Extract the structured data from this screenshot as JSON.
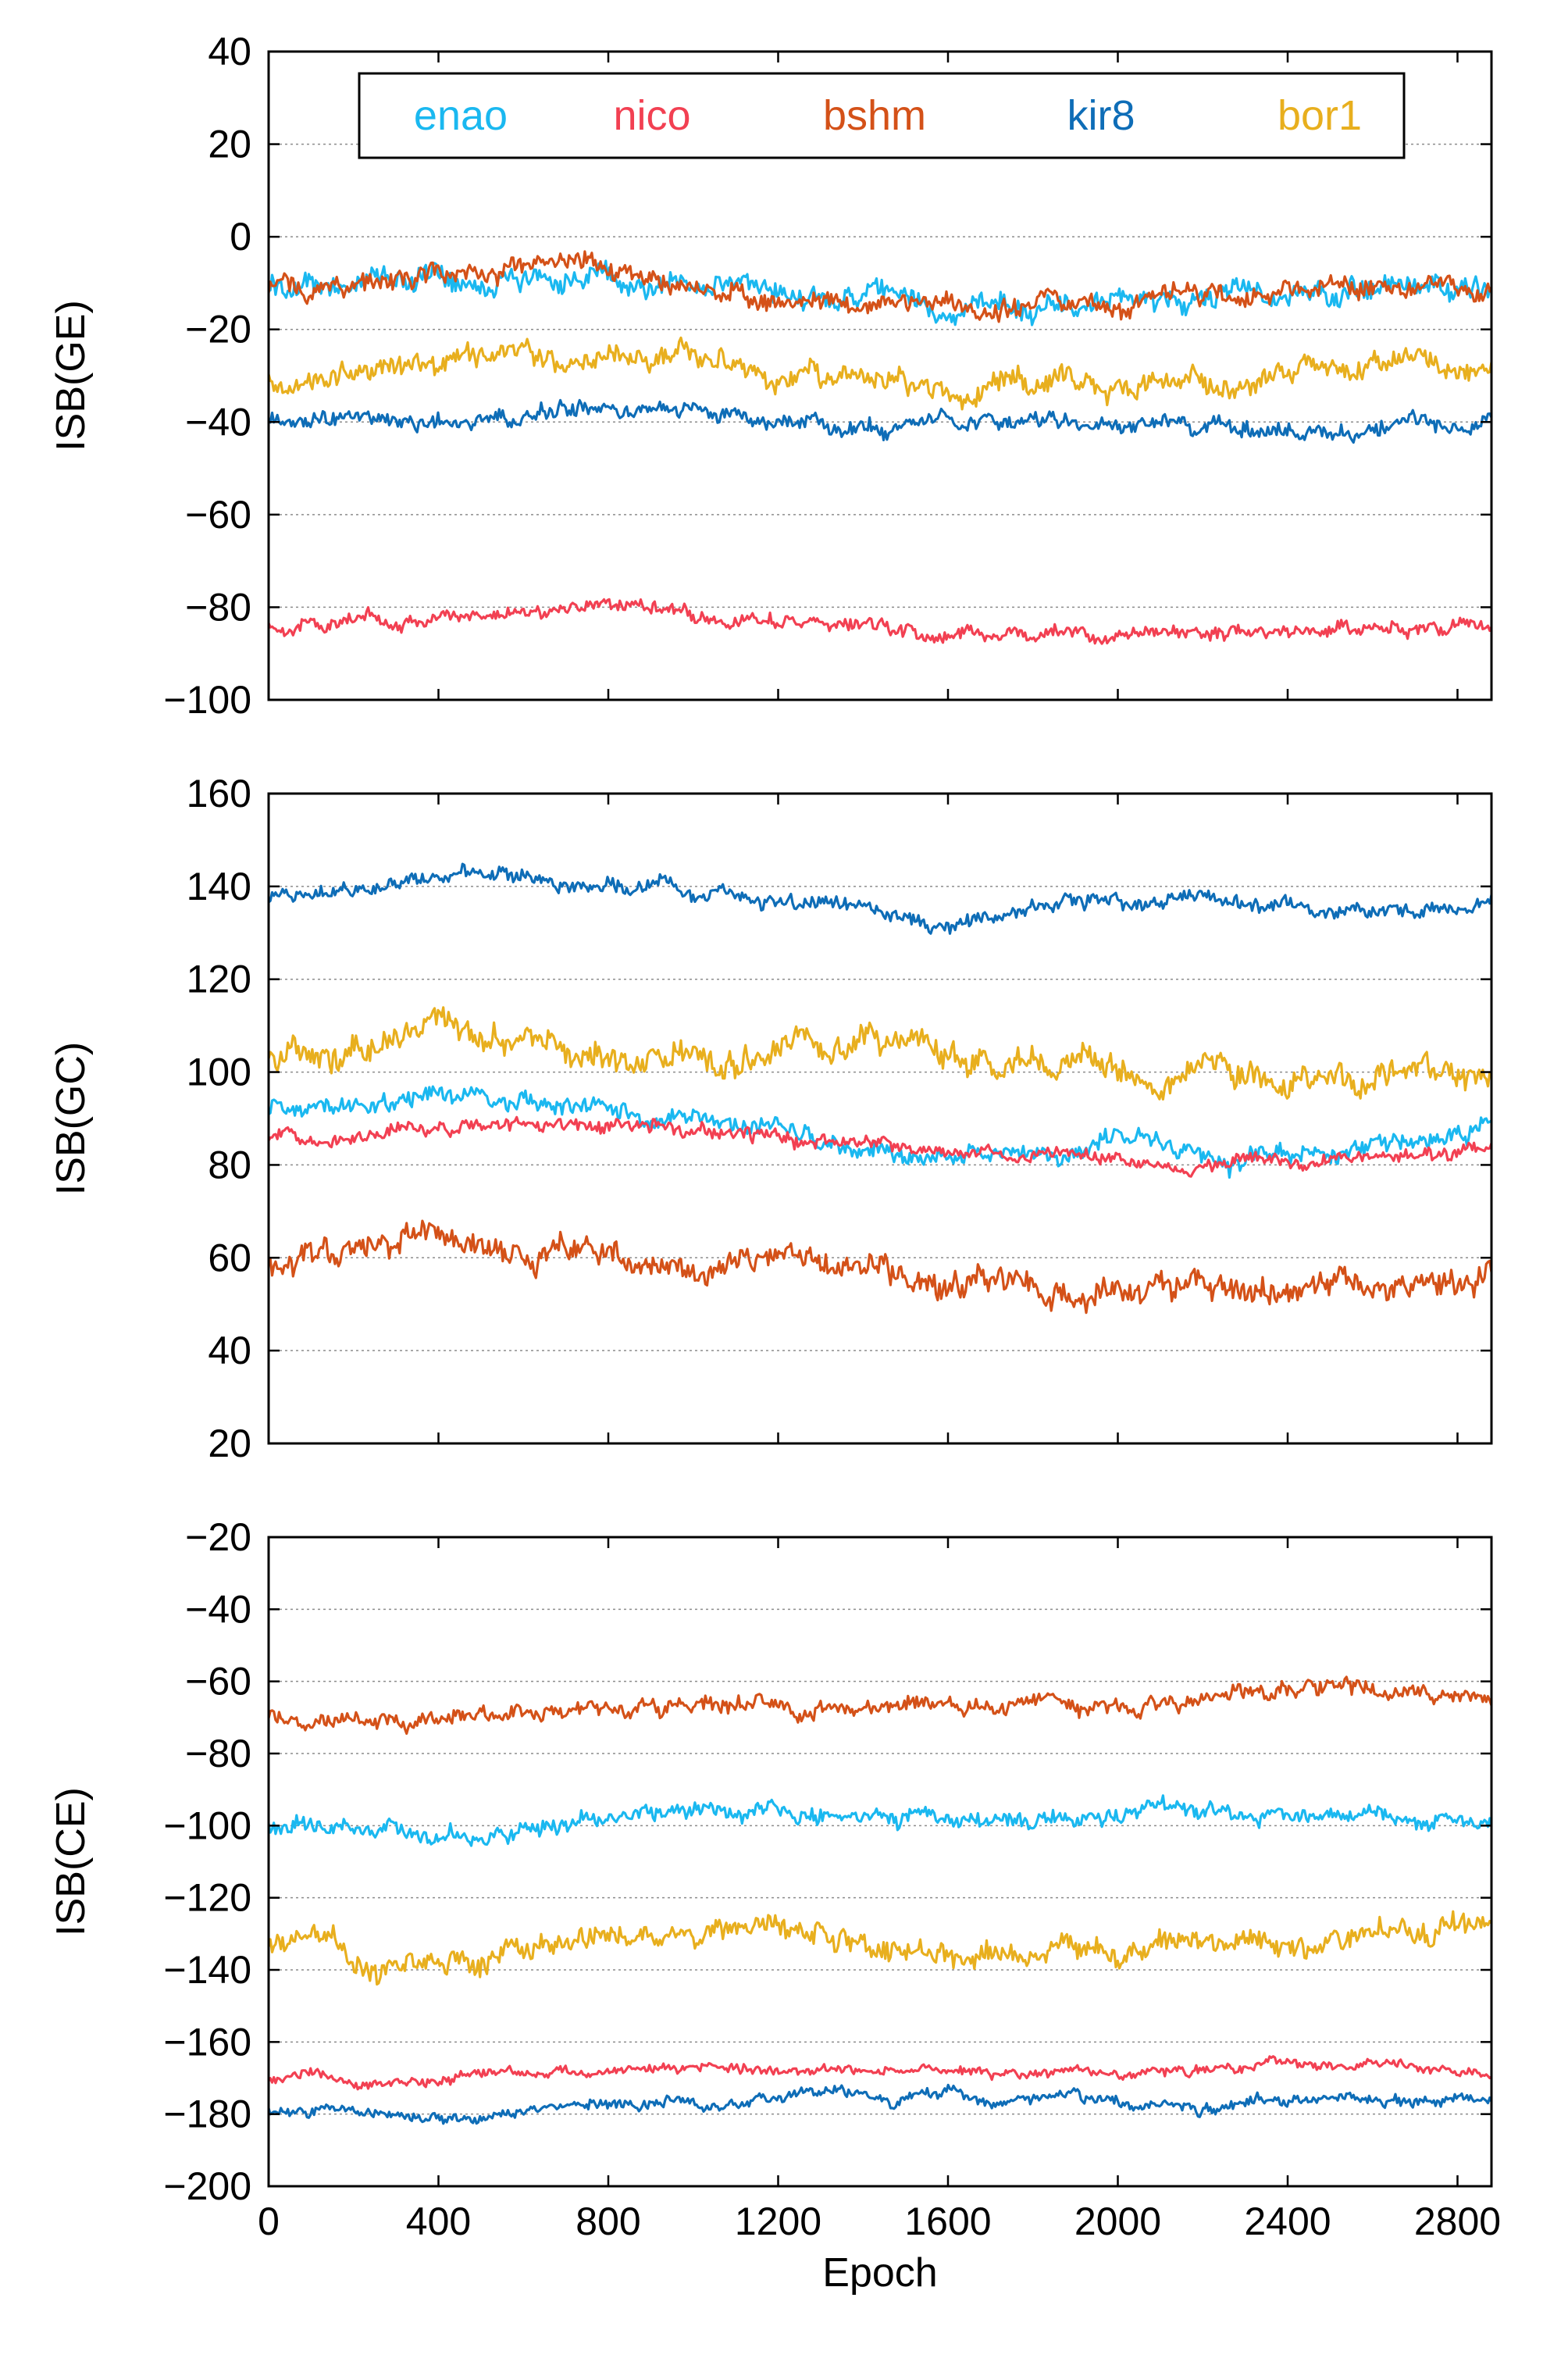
{
  "chart_data": [
    {
      "type": "line",
      "ylabel": "ISB(GE)",
      "xlabel": "",
      "xlim": [
        0,
        2880
      ],
      "ylim": [
        -100,
        40
      ],
      "yticks": [
        40,
        20,
        0,
        -20,
        -40,
        -60,
        -80,
        -100
      ],
      "ytick_labels": [
        "40",
        "20",
        "0",
        "−20",
        "−40",
        "−60",
        "−80",
        "−100"
      ],
      "xticks": [
        0,
        400,
        800,
        1200,
        1600,
        2000,
        2400,
        2800
      ],
      "show_xtick_labels": false,
      "grid": "horizontal-dotted",
      "legend_location": "top-center",
      "series": [
        {
          "name": "enao",
          "color": "#1AB8F0",
          "noise": 2.2,
          "x": [
            0,
            400,
            800,
            1200,
            1600,
            2000,
            2400,
            2880
          ],
          "values": [
            -11,
            -8,
            -9,
            -11,
            -16,
            -14,
            -13,
            -11
          ]
        },
        {
          "name": "nico",
          "color": "#F24052",
          "noise": 1.3,
          "x": [
            0,
            400,
            800,
            1200,
            1600,
            2000,
            2400,
            2880
          ],
          "values": [
            -84,
            -82,
            -79,
            -83,
            -86,
            -86,
            -85,
            -84
          ]
        },
        {
          "name": "bshm",
          "color": "#D45118",
          "noise": 2.0,
          "x": [
            0,
            400,
            800,
            1200,
            1600,
            2000,
            2400,
            2880
          ],
          "values": [
            -11,
            -9,
            -7,
            -13,
            -15,
            -14,
            -11,
            -11
          ]
        },
        {
          "name": "kir8",
          "color": "#0E6DB7",
          "noise": 1.6,
          "x": [
            0,
            400,
            800,
            1200,
            1600,
            2000,
            2400,
            2880
          ],
          "values": [
            -40,
            -39,
            -37,
            -40,
            -41,
            -40,
            -42,
            -41
          ]
        },
        {
          "name": "bor1",
          "color": "#E8AF1E",
          "noise": 2.2,
          "x": [
            0,
            400,
            800,
            1200,
            1600,
            2000,
            2400,
            2880
          ],
          "values": [
            -31,
            -27,
            -26,
            -29,
            -33,
            -31,
            -30,
            -29
          ]
        }
      ]
    },
    {
      "type": "line",
      "ylabel": "ISB(GC)",
      "xlabel": "",
      "xlim": [
        0,
        2880
      ],
      "ylim": [
        20,
        160
      ],
      "yticks": [
        160,
        140,
        120,
        100,
        80,
        60,
        40,
        20
      ],
      "ytick_labels": [
        "160",
        "140",
        "120",
        "100",
        "80",
        "60",
        "40",
        "20"
      ],
      "xticks": [
        0,
        400,
        800,
        1200,
        1600,
        2000,
        2400,
        2800
      ],
      "show_xtick_labels": false,
      "grid": "horizontal-dotted",
      "series": [
        {
          "name": "enao",
          "color": "#1AB8F0",
          "noise": 1.8,
          "x": [
            0,
            400,
            800,
            1200,
            1600,
            2000,
            2400,
            2880
          ],
          "values": [
            93,
            95,
            91,
            87,
            81,
            84,
            81,
            88
          ]
        },
        {
          "name": "nico",
          "color": "#F24052",
          "noise": 1.3,
          "x": [
            0,
            400,
            800,
            1200,
            1600,
            2000,
            2400,
            2880
          ],
          "values": [
            86,
            89,
            88,
            86,
            82,
            82,
            80,
            82
          ]
        },
        {
          "name": "bshm",
          "color": "#D45118",
          "noise": 2.6,
          "x": [
            0,
            400,
            800,
            1200,
            1600,
            2000,
            2400,
            2880
          ],
          "values": [
            60,
            63,
            60,
            57,
            56,
            53,
            53,
            56
          ]
        },
        {
          "name": "kir8",
          "color": "#0E6DB7",
          "noise": 1.4,
          "x": [
            0,
            400,
            800,
            1200,
            1600,
            2000,
            2400,
            2880
          ],
          "values": [
            138,
            141,
            141,
            137,
            132,
            137,
            136,
            135
          ]
        },
        {
          "name": "bor1",
          "color": "#E8AF1E",
          "noise": 2.6,
          "x": [
            0,
            400,
            800,
            1200,
            1600,
            2000,
            2400,
            2880
          ],
          "values": [
            104,
            110,
            103,
            102,
            106,
            100,
            100,
            102
          ]
        }
      ]
    },
    {
      "type": "line",
      "ylabel": "ISB(CE)",
      "xlabel": "Epoch",
      "xlim": [
        0,
        2880
      ],
      "ylim": [
        -200,
        -20
      ],
      "yticks": [
        -20,
        -40,
        -60,
        -80,
        -100,
        -120,
        -140,
        -160,
        -180,
        -200
      ],
      "ytick_labels": [
        "−20",
        "−40",
        "−60",
        "−80",
        "−100",
        "−120",
        "−140",
        "−160",
        "−180",
        "−200"
      ],
      "xticks": [
        0,
        400,
        800,
        1200,
        1600,
        2000,
        2400,
        2800
      ],
      "xtick_labels": [
        "0",
        "400",
        "800",
        "1200",
        "1600",
        "2000",
        "2400",
        "2800"
      ],
      "show_xtick_labels": true,
      "grid": "horizontal-dotted",
      "series": [
        {
          "name": "enao",
          "color": "#1AB8F0",
          "noise": 2.0,
          "x": [
            0,
            400,
            800,
            1200,
            1600,
            2000,
            2400,
            2880
          ],
          "values": [
            -100,
            -103,
            -98,
            -95,
            -99,
            -97,
            -96,
            -97
          ]
        },
        {
          "name": "nico",
          "color": "#F24052",
          "noise": 1.2,
          "x": [
            0,
            400,
            800,
            1200,
            1600,
            2000,
            2400,
            2880
          ],
          "values": [
            -170,
            -171,
            -168,
            -168,
            -168,
            -169,
            -166,
            -168
          ]
        },
        {
          "name": "bshm",
          "color": "#D45118",
          "noise": 2.0,
          "x": [
            0,
            400,
            800,
            1200,
            1600,
            2000,
            2400,
            2880
          ],
          "values": [
            -70,
            -70,
            -66,
            -65,
            -67,
            -67,
            -60,
            -66
          ]
        },
        {
          "name": "kir8",
          "color": "#0E6DB7",
          "noise": 1.4,
          "x": [
            0,
            400,
            800,
            1200,
            1600,
            2000,
            2400,
            2880
          ],
          "values": [
            -179,
            -181,
            -177,
            -176,
            -175,
            -178,
            -176,
            -176
          ]
        },
        {
          "name": "bor1",
          "color": "#E8AF1E",
          "noise": 3.0,
          "x": [
            0,
            400,
            800,
            1200,
            1600,
            2000,
            2400,
            2880
          ],
          "values": [
            -132,
            -140,
            -131,
            -130,
            -136,
            -134,
            -132,
            -128
          ]
        }
      ]
    }
  ],
  "legend": {
    "items": [
      {
        "name": "enao",
        "color": "#1AB8F0"
      },
      {
        "name": "nico",
        "color": "#F24052"
      },
      {
        "name": "bshm",
        "color": "#D45118"
      },
      {
        "name": "kir8",
        "color": "#0E6DB7"
      },
      {
        "name": "bor1",
        "color": "#E8AF1E"
      }
    ]
  }
}
